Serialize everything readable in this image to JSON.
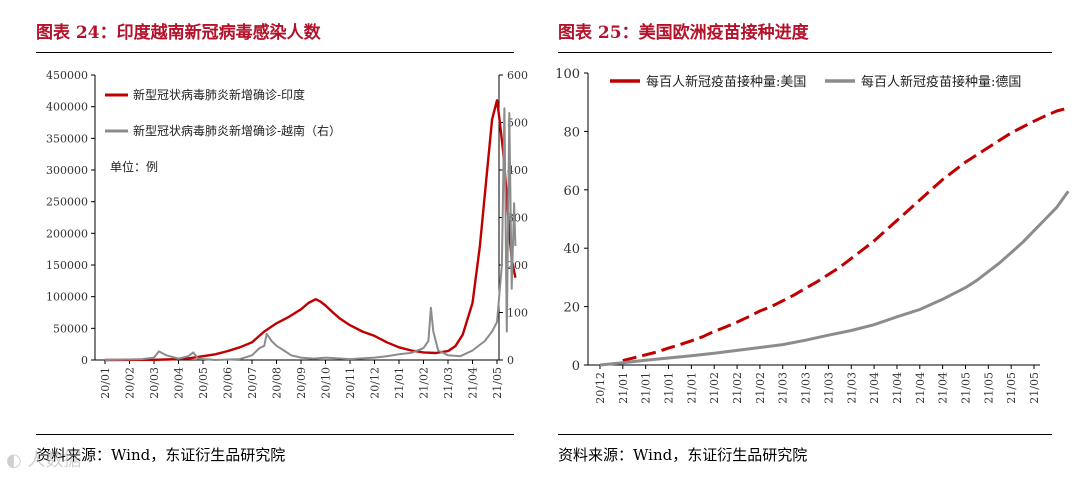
{
  "left": {
    "title": "图表 24：印度越南新冠病毒感染人数",
    "source": "资料来源：Wind，东证衍生品研究院",
    "unit_note": "单位：例",
    "chart_data": {
      "type": "line",
      "x_ticks": [
        "20/01",
        "20/02",
        "20/03",
        "20/04",
        "20/05",
        "20/06",
        "20/07",
        "20/08",
        "20/09",
        "20/10",
        "20/11",
        "20/12",
        "21/01",
        "21/02",
        "21/03",
        "21/04",
        "21/05"
      ],
      "y_left": {
        "min": 0,
        "max": 450000,
        "ticks": [
          "0",
          "50000",
          "100000",
          "150000",
          "200000",
          "250000",
          "300000",
          "350000",
          "400000",
          "450000"
        ]
      },
      "y_right": {
        "min": 0,
        "max": 600,
        "ticks": [
          "0",
          "100",
          "200",
          "300",
          "400",
          "500",
          "600"
        ]
      },
      "series": [
        {
          "name": "新型冠状病毒肺炎新增确诊-印度",
          "axis": "left",
          "color": "#c00000",
          "points": [
            [
              0.0,
              0
            ],
            [
              2.0,
              300
            ],
            [
              2.5,
              800
            ],
            [
              3.0,
              1500
            ],
            [
              3.5,
              3000
            ],
            [
              4.0,
              6000
            ],
            [
              4.5,
              9000
            ],
            [
              5.0,
              14000
            ],
            [
              5.5,
              20000
            ],
            [
              6.0,
              28000
            ],
            [
              6.5,
              45000
            ],
            [
              7.0,
              58000
            ],
            [
              7.5,
              68000
            ],
            [
              8.0,
              80000
            ],
            [
              8.3,
              90000
            ],
            [
              8.6,
              96000
            ],
            [
              8.8,
              92000
            ],
            [
              9.0,
              86000
            ],
            [
              9.3,
              75000
            ],
            [
              9.6,
              65000
            ],
            [
              10.0,
              55000
            ],
            [
              10.5,
              45000
            ],
            [
              11.0,
              38000
            ],
            [
              11.5,
              28000
            ],
            [
              12.0,
              20000
            ],
            [
              12.5,
              15000
            ],
            [
              13.0,
              12000
            ],
            [
              13.5,
              11000
            ],
            [
              14.0,
              14000
            ],
            [
              14.3,
              22000
            ],
            [
              14.6,
              40000
            ],
            [
              15.0,
              90000
            ],
            [
              15.3,
              180000
            ],
            [
              15.6,
              300000
            ],
            [
              15.8,
              380000
            ],
            [
              16.0,
              410000
            ],
            [
              16.1,
              380000
            ],
            [
              16.25,
              330000
            ],
            [
              16.4,
              260000
            ],
            [
              16.5,
              200000
            ],
            [
              16.6,
              160000
            ],
            [
              16.75,
              130000
            ]
          ]
        },
        {
          "name": "新型冠状病毒肺炎新增确诊-越南（右）",
          "axis": "right",
          "color": "#8c8c8c",
          "points": [
            [
              0.0,
              0
            ],
            [
              1.5,
              2
            ],
            [
              2.0,
              5
            ],
            [
              2.2,
              18
            ],
            [
              2.5,
              10
            ],
            [
              3.0,
              3
            ],
            [
              3.4,
              8
            ],
            [
              3.6,
              16
            ],
            [
              3.8,
              3
            ],
            [
              4.5,
              0
            ],
            [
              5.5,
              2
            ],
            [
              6.0,
              10
            ],
            [
              6.3,
              25
            ],
            [
              6.5,
              30
            ],
            [
              6.6,
              55
            ],
            [
              6.8,
              40
            ],
            [
              7.0,
              30
            ],
            [
              7.3,
              20
            ],
            [
              7.6,
              10
            ],
            [
              8.0,
              5
            ],
            [
              8.5,
              3
            ],
            [
              9.0,
              5
            ],
            [
              10.0,
              2
            ],
            [
              11.0,
              5
            ],
            [
              11.5,
              8
            ],
            [
              12.0,
              12
            ],
            [
              12.5,
              15
            ],
            [
              13.0,
              25
            ],
            [
              13.2,
              40
            ],
            [
              13.3,
              110
            ],
            [
              13.4,
              60
            ],
            [
              13.6,
              20
            ],
            [
              14.0,
              10
            ],
            [
              14.5,
              8
            ],
            [
              15.0,
              20
            ],
            [
              15.5,
              40
            ],
            [
              15.8,
              60
            ],
            [
              16.0,
              80
            ],
            [
              16.2,
              200
            ],
            [
              16.3,
              530
            ],
            [
              16.4,
              60
            ],
            [
              16.5,
              520
            ],
            [
              16.6,
              150
            ],
            [
              16.7,
              330
            ],
            [
              16.75,
              240
            ]
          ]
        }
      ]
    }
  },
  "right": {
    "title": "图表 25：美国欧洲疫苗接种进度",
    "source": "资料来源：Wind，东证衍生品研究院",
    "chart_data": {
      "type": "line",
      "x_ticks": [
        "20/12",
        "21/01",
        "21/01",
        "21/01",
        "21/01",
        "21/02",
        "21/02",
        "21/02",
        "21/03",
        "21/03",
        "21/03",
        "21/03",
        "21/04",
        "21/04",
        "21/04",
        "21/04",
        "21/05",
        "21/05",
        "21/05",
        "21/05"
      ],
      "y": {
        "min": 0,
        "max": 100,
        "ticks": [
          "0",
          "20",
          "40",
          "60",
          "80",
          "100"
        ]
      },
      "series": [
        {
          "name": "每百人新冠疫苗接种量:美国",
          "color": "#c00000",
          "points": [
            [
              1.0,
              1.5
            ],
            [
              1.5,
              2.5
            ],
            [
              2.0,
              3.5
            ],
            [
              2.5,
              4.5
            ],
            [
              3.0,
              5.8
            ],
            [
              3.5,
              7
            ],
            [
              4.0,
              8.3
            ],
            [
              4.5,
              9.7
            ],
            [
              5.0,
              11.5
            ],
            [
              5.5,
              13
            ],
            [
              6.0,
              14.7
            ],
            [
              6.5,
              16.5
            ],
            [
              7.0,
              18.5
            ],
            [
              7.5,
              20
            ],
            [
              8.0,
              22
            ],
            [
              8.5,
              24
            ],
            [
              9.0,
              26.3
            ],
            [
              9.5,
              28.5
            ],
            [
              10.0,
              31
            ],
            [
              10.5,
              33.5
            ],
            [
              11.0,
              36.5
            ],
            [
              11.5,
              39.5
            ],
            [
              12.0,
              42.5
            ],
            [
              12.5,
              46
            ],
            [
              13.0,
              49.5
            ],
            [
              13.5,
              53
            ],
            [
              14.0,
              56.5
            ],
            [
              14.5,
              60
            ],
            [
              15.0,
              63.5
            ],
            [
              15.5,
              66.5
            ],
            [
              16.0,
              69.5
            ],
            [
              16.5,
              72
            ],
            [
              17.0,
              74.5
            ],
            [
              17.5,
              77
            ],
            [
              18.0,
              79.5
            ],
            [
              18.5,
              81.5
            ],
            [
              19.0,
              83.5
            ],
            [
              19.5,
              85.3
            ],
            [
              20.0,
              87
            ],
            [
              20.5,
              88
            ]
          ]
        },
        {
          "name": "每百人新冠疫苗接种量:德国",
          "color": "#8c8c8c",
          "points": [
            [
              0.0,
              0
            ],
            [
              1.0,
              0.8
            ],
            [
              2.0,
              1.6
            ],
            [
              3.0,
              2.4
            ],
            [
              4.0,
              3.2
            ],
            [
              5.0,
              4
            ],
            [
              6.0,
              5
            ],
            [
              7.0,
              6
            ],
            [
              8.0,
              7
            ],
            [
              9.0,
              8.5
            ],
            [
              10.0,
              10.2
            ],
            [
              11.0,
              11.8
            ],
            [
              12.0,
              13.8
            ],
            [
              13.0,
              16.5
            ],
            [
              14.0,
              19
            ],
            [
              15.0,
              22.5
            ],
            [
              16.0,
              26.5
            ],
            [
              16.5,
              29
            ],
            [
              17.0,
              32
            ],
            [
              17.5,
              35
            ],
            [
              18.0,
              38.5
            ],
            [
              18.5,
              42
            ],
            [
              19.0,
              46
            ],
            [
              19.5,
              50
            ],
            [
              20.0,
              54
            ],
            [
              20.5,
              59.5
            ]
          ]
        }
      ]
    }
  }
}
